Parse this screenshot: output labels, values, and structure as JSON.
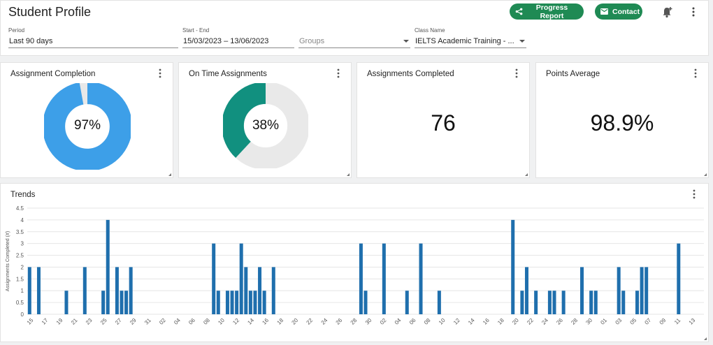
{
  "header": {
    "title": "Student Profile",
    "progress_report_label": "Progress Report",
    "contact_label": "Contact",
    "icons": [
      "share-icon",
      "mail-icon",
      "bell-plus-icon",
      "more-vert-icon"
    ]
  },
  "filters": {
    "period": {
      "label": "Period",
      "value": "Last 90 days"
    },
    "range": {
      "label": "Start - End",
      "value": "15/03/2023 – 13/06/2023"
    },
    "groups": {
      "placeholder": "Groups"
    },
    "class": {
      "label": "Class Name",
      "value": "IELTS Academic Training - ..."
    }
  },
  "cards": {
    "assignment_completion": {
      "title": "Assignment Completion",
      "value_label": "97%",
      "percent": 97,
      "color": "#3d9fe8"
    },
    "on_time": {
      "title": "On Time Assignments",
      "value_label": "38%",
      "percent": 38,
      "color": "#11907f"
    },
    "assignments_completed": {
      "title": "Assignments Completed",
      "value": "76"
    },
    "points_average": {
      "title": "Points Average",
      "value": "98.9%"
    }
  },
  "trends": {
    "title": "Trends",
    "chart_data": {
      "type": "bar",
      "ylabel": "Assignments Completed (#)",
      "xlabel": "",
      "ylim": [
        0,
        4.5
      ],
      "yticks": [
        0,
        0.5,
        1,
        1.5,
        2,
        2.5,
        3,
        3.5,
        4,
        4.5
      ],
      "grid": true,
      "color": "#1f6fad",
      "x_tick_labels": [
        "15",
        "17",
        "19",
        "21",
        "23",
        "25",
        "27",
        "29",
        "31",
        "02",
        "04",
        "06",
        "08",
        "10",
        "12",
        "14",
        "16",
        "18",
        "20",
        "22",
        "24",
        "26",
        "28",
        "30",
        "02",
        "04",
        "06",
        "08",
        "10",
        "12",
        "14",
        "16",
        "18",
        "20",
        "22",
        "24",
        "26",
        "28",
        "30",
        "01",
        "03",
        "05",
        "07",
        "09",
        "11",
        "13"
      ],
      "values": [
        2,
        0,
        2,
        0,
        0,
        0,
        0,
        0,
        1,
        0,
        0,
        0,
        2,
        0,
        0,
        0,
        1,
        4,
        0,
        2,
        1,
        1,
        2,
        0,
        0,
        0,
        0,
        0,
        0,
        0,
        0,
        0,
        0,
        0,
        0,
        0,
        0,
        0,
        0,
        0,
        3,
        1,
        0,
        1,
        1,
        1,
        3,
        2,
        1,
        1,
        2,
        1,
        0,
        2,
        0,
        0,
        0,
        0,
        0,
        0,
        0,
        0,
        0,
        0,
        0,
        0,
        0,
        0,
        0,
        0,
        0,
        0,
        3,
        1,
        0,
        0,
        0,
        3,
        0,
        0,
        0,
        0,
        1,
        0,
        0,
        3,
        0,
        0,
        0,
        1,
        0,
        0,
        0,
        0,
        0,
        0,
        0,
        0,
        0,
        0,
        0,
        0,
        0,
        0,
        0,
        4,
        0,
        1,
        2,
        0,
        1,
        0,
        0,
        1,
        1,
        0,
        1,
        0,
        0,
        0,
        2,
        0,
        1,
        1,
        0,
        0,
        0,
        0,
        2,
        1,
        0,
        0,
        1,
        2,
        2,
        0,
        0,
        0,
        0,
        0,
        0,
        3,
        0,
        0,
        0,
        0,
        0
      ]
    }
  }
}
